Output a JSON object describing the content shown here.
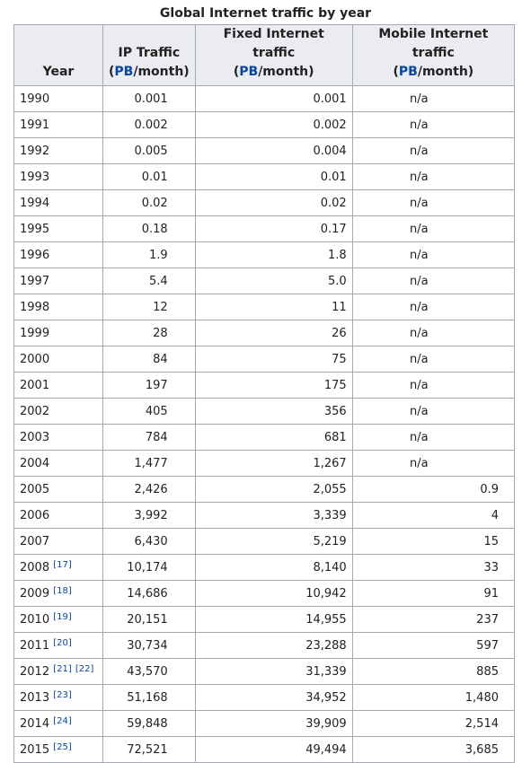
{
  "caption": "Global Internet traffic by year",
  "headers": {
    "year": "Year",
    "ip": {
      "line1": "IP Traffic",
      "unit_link": "PB",
      "unit_rest": "/month"
    },
    "fixed": {
      "line1": "Fixed Internet traffic",
      "unit_link": "PB",
      "unit_rest": "/month"
    },
    "mobile": {
      "line1": "Mobile Internet traffic",
      "unit_link": "PB",
      "unit_rest": "/month"
    }
  },
  "unit_open": "(",
  "unit_close": ")",
  "rows": [
    {
      "year": "1990",
      "refs": [],
      "ip": "0.001",
      "fixed": "0.001",
      "mobile": "n/a"
    },
    {
      "year": "1991",
      "refs": [],
      "ip": "0.002",
      "fixed": "0.002",
      "mobile": "n/a"
    },
    {
      "year": "1992",
      "refs": [],
      "ip": "0.005",
      "fixed": "0.004",
      "mobile": "n/a"
    },
    {
      "year": "1993",
      "refs": [],
      "ip": "0.01",
      "fixed": "0.01",
      "mobile": "n/a"
    },
    {
      "year": "1994",
      "refs": [],
      "ip": "0.02",
      "fixed": "0.02",
      "mobile": "n/a"
    },
    {
      "year": "1995",
      "refs": [],
      "ip": "0.18",
      "fixed": "0.17",
      "mobile": "n/a"
    },
    {
      "year": "1996",
      "refs": [],
      "ip": "1.9",
      "fixed": "1.8",
      "mobile": "n/a"
    },
    {
      "year": "1997",
      "refs": [],
      "ip": "5.4",
      "fixed": "5.0",
      "mobile": "n/a"
    },
    {
      "year": "1998",
      "refs": [],
      "ip": "12",
      "fixed": "11",
      "mobile": "n/a"
    },
    {
      "year": "1999",
      "refs": [],
      "ip": "28",
      "fixed": "26",
      "mobile": "n/a"
    },
    {
      "year": "2000",
      "refs": [],
      "ip": "84",
      "fixed": "75",
      "mobile": "n/a"
    },
    {
      "year": "2001",
      "refs": [],
      "ip": "197",
      "fixed": "175",
      "mobile": "n/a"
    },
    {
      "year": "2002",
      "refs": [],
      "ip": "405",
      "fixed": "356",
      "mobile": "n/a"
    },
    {
      "year": "2003",
      "refs": [],
      "ip": "784",
      "fixed": "681",
      "mobile": "n/a"
    },
    {
      "year": "2004",
      "refs": [],
      "ip": "1,477",
      "fixed": "1,267",
      "mobile": "n/a"
    },
    {
      "year": "2005",
      "refs": [],
      "ip": "2,426",
      "fixed": "2,055",
      "mobile": "0.9"
    },
    {
      "year": "2006",
      "refs": [],
      "ip": "3,992",
      "fixed": "3,339",
      "mobile": "4"
    },
    {
      "year": "2007",
      "refs": [],
      "ip": "6,430",
      "fixed": "5,219",
      "mobile": "15"
    },
    {
      "year": "2008",
      "refs": [
        "[17]"
      ],
      "ip": "10,174",
      "fixed": "8,140",
      "mobile": "33"
    },
    {
      "year": "2009",
      "refs": [
        "[18]"
      ],
      "ip": "14,686",
      "fixed": "10,942",
      "mobile": "91"
    },
    {
      "year": "2010",
      "refs": [
        "[19]"
      ],
      "ip": "20,151",
      "fixed": "14,955",
      "mobile": "237"
    },
    {
      "year": "2011",
      "refs": [
        "[20]"
      ],
      "ip": "30,734",
      "fixed": "23,288",
      "mobile": "597"
    },
    {
      "year": "2012",
      "refs": [
        "[21]",
        "[22]"
      ],
      "ip": "43,570",
      "fixed": "31,339",
      "mobile": "885"
    },
    {
      "year": "2013",
      "refs": [
        "[23]"
      ],
      "ip": "51,168",
      "fixed": "34,952",
      "mobile": "1,480"
    },
    {
      "year": "2014",
      "refs": [
        "[24]"
      ],
      "ip": "59,848",
      "fixed": "39,909",
      "mobile": "2,514"
    },
    {
      "year": "2015",
      "refs": [
        "[25]"
      ],
      "ip": "72,521",
      "fixed": "49,494",
      "mobile": "3,685"
    }
  ]
}
